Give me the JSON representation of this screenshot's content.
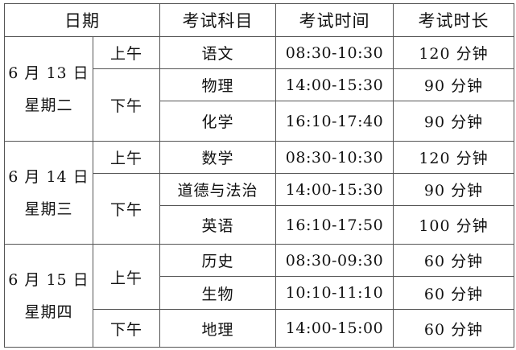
{
  "headers": {
    "date": "日期",
    "subject": "考试科目",
    "time": "考试时间",
    "duration": "考试时长"
  },
  "days": [
    {
      "date": "6 月 13 日",
      "weekday": "星期二",
      "sessions": [
        {
          "period": "上午",
          "exams": [
            {
              "subject": "语文",
              "time": "08:30-10:30",
              "duration": "120 分钟"
            }
          ]
        },
        {
          "period": "下午",
          "exams": [
            {
              "subject": "物理",
              "time": "14:00-15:30",
              "duration": "90 分钟"
            },
            {
              "subject": "化学",
              "time": "16:10-17:40",
              "duration": "90 分钟"
            }
          ]
        }
      ]
    },
    {
      "date": "6 月 14 日",
      "weekday": "星期三",
      "sessions": [
        {
          "period": "上午",
          "exams": [
            {
              "subject": "数学",
              "time": "08:30-10:30",
              "duration": "120 分钟"
            }
          ]
        },
        {
          "period": "下午",
          "exams": [
            {
              "subject": "道德与法治",
              "time": "14:00-15:30",
              "duration": "90 分钟"
            },
            {
              "subject": "英语",
              "time": "16:10-17:50",
              "duration": "100 分钟"
            }
          ]
        }
      ]
    },
    {
      "date": "6 月 15 日",
      "weekday": "星期四",
      "sessions": [
        {
          "period": "上午",
          "exams": [
            {
              "subject": "历史",
              "time": "08:30-09:30",
              "duration": "60 分钟"
            },
            {
              "subject": "生物",
              "time": "10:10-11:10",
              "duration": "60 分钟"
            }
          ]
        },
        {
          "period": "下午",
          "exams": [
            {
              "subject": "地理",
              "time": "14:00-15:00",
              "duration": "60 分钟"
            }
          ]
        }
      ]
    }
  ]
}
